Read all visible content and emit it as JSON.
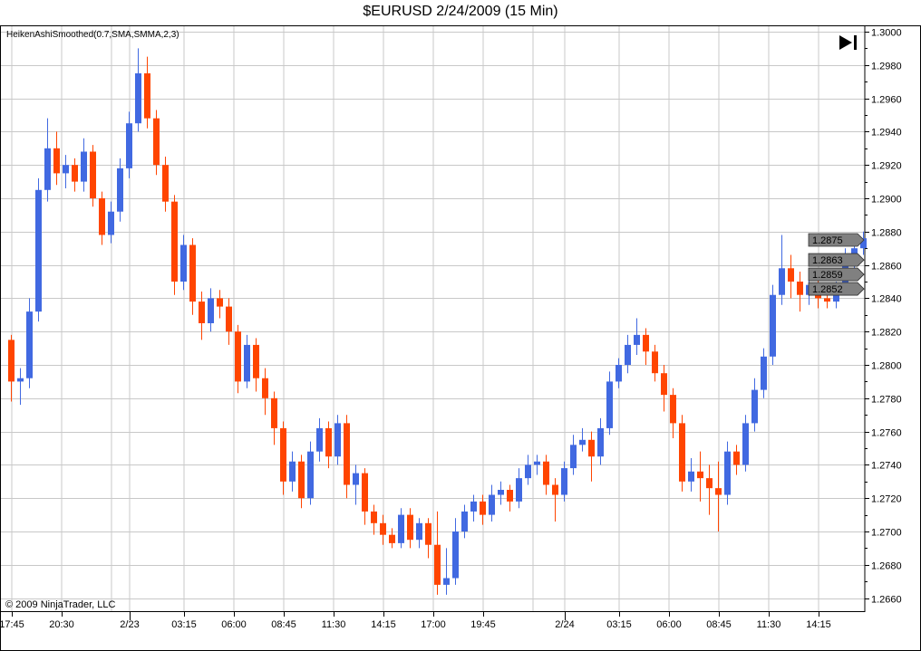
{
  "title": "$EURUSD  2/24/2009 (15 Min)",
  "indicator_label": "HeikenAshiSmoothed(0.7,SMA,SMMA,2,3)",
  "copyright": "© 2009 NinjaTrader, LLC",
  "icons": {
    "skip": "skip-to-end-icon"
  },
  "chart_data": {
    "type": "candlestick",
    "title": "$EURUSD  2/24/2009 (15 Min)",
    "colors": {
      "up": "#4169e1",
      "down": "#ff4500",
      "grid": "#c8c8c8",
      "price_marker": "#808080"
    },
    "ylim": [
      1.2652,
      1.3004
    ],
    "y_ticks": [
      "1.3000",
      "1.2980",
      "1.2960",
      "1.2940",
      "1.2920",
      "1.2900",
      "1.2880",
      "1.2860",
      "1.2840",
      "1.2820",
      "1.2800",
      "1.2780",
      "1.2760",
      "1.2740",
      "1.2720",
      "1.2700",
      "1.2680",
      "1.2660"
    ],
    "x_ticks": [
      "17:45",
      "20:30",
      "",
      "2/23",
      "03:15",
      "06:00",
      "08:45",
      "11:30",
      "14:15",
      "17:00",
      "19:45",
      "",
      "2/24",
      "03:15",
      "06:00",
      "08:45",
      "11:30",
      "14:15"
    ],
    "grid": true,
    "price_markers": [
      "1.2875",
      "1.2863",
      "1.2859",
      "1.2852"
    ],
    "bars_ohlc": [
      [
        1.2815,
        1.2818,
        1.2778,
        1.279
      ],
      [
        1.279,
        1.2798,
        1.2776,
        1.2792
      ],
      [
        1.2792,
        1.284,
        1.2786,
        1.2832
      ],
      [
        1.2832,
        1.2912,
        1.2826,
        1.2905
      ],
      [
        1.2905,
        1.2948,
        1.2898,
        1.293
      ],
      [
        1.293,
        1.294,
        1.2908,
        1.2915
      ],
      [
        1.2915,
        1.2926,
        1.2906,
        1.292
      ],
      [
        1.292,
        1.2924,
        1.2904,
        1.291
      ],
      [
        1.291,
        1.2936,
        1.2904,
        1.2928
      ],
      [
        1.2928,
        1.2932,
        1.2895,
        1.29
      ],
      [
        1.29,
        1.2904,
        1.2872,
        1.2878
      ],
      [
        1.2878,
        1.2898,
        1.2873,
        1.2892
      ],
      [
        1.2892,
        1.2924,
        1.2886,
        1.2918
      ],
      [
        1.2918,
        1.2952,
        1.2912,
        1.2945
      ],
      [
        1.2945,
        1.299,
        1.294,
        1.2975
      ],
      [
        1.2975,
        1.2985,
        1.2942,
        1.2948
      ],
      [
        1.2948,
        1.2953,
        1.2914,
        1.292
      ],
      [
        1.292,
        1.2925,
        1.2892,
        1.2898
      ],
      [
        1.2898,
        1.2902,
        1.2842,
        1.285
      ],
      [
        1.285,
        1.2878,
        1.2845,
        1.2872
      ],
      [
        1.2872,
        1.2876,
        1.283,
        1.2838
      ],
      [
        1.2838,
        1.2844,
        1.2815,
        1.2825
      ],
      [
        1.2825,
        1.2846,
        1.282,
        1.284
      ],
      [
        1.284,
        1.2845,
        1.2828,
        1.2835
      ],
      [
        1.2835,
        1.284,
        1.2812,
        1.282
      ],
      [
        1.282,
        1.2824,
        1.2783,
        1.279
      ],
      [
        1.279,
        1.2818,
        1.2786,
        1.2812
      ],
      [
        1.2812,
        1.2816,
        1.2784,
        1.2792
      ],
      [
        1.2792,
        1.2798,
        1.277,
        1.278
      ],
      [
        1.278,
        1.2784,
        1.2752,
        1.2762
      ],
      [
        1.2762,
        1.2766,
        1.2722,
        1.273
      ],
      [
        1.273,
        1.2748,
        1.2724,
        1.2742
      ],
      [
        1.2742,
        1.2746,
        1.2714,
        1.272
      ],
      [
        1.272,
        1.2754,
        1.2716,
        1.2748
      ],
      [
        1.2748,
        1.2768,
        1.2742,
        1.2762
      ],
      [
        1.2762,
        1.2766,
        1.2738,
        1.2745
      ],
      [
        1.2745,
        1.277,
        1.274,
        1.2765
      ],
      [
        1.2765,
        1.277,
        1.272,
        1.2728
      ],
      [
        1.2728,
        1.274,
        1.2716,
        1.2735
      ],
      [
        1.2735,
        1.2738,
        1.2704,
        1.2712
      ],
      [
        1.2712,
        1.2716,
        1.2698,
        1.2705
      ],
      [
        1.2705,
        1.271,
        1.2692,
        1.2698
      ],
      [
        1.2698,
        1.2702,
        1.269,
        1.2693
      ],
      [
        1.2693,
        1.2714,
        1.269,
        1.271
      ],
      [
        1.271,
        1.2714,
        1.269,
        1.2695
      ],
      [
        1.2695,
        1.2708,
        1.269,
        1.2705
      ],
      [
        1.2705,
        1.2708,
        1.2684,
        1.2692
      ],
      [
        1.2692,
        1.2712,
        1.2662,
        1.2668
      ],
      [
        1.2668,
        1.269,
        1.2662,
        1.2672
      ],
      [
        1.2672,
        1.2708,
        1.2668,
        1.27
      ],
      [
        1.27,
        1.2716,
        1.2696,
        1.2712
      ],
      [
        1.2712,
        1.2722,
        1.2706,
        1.2718
      ],
      [
        1.2718,
        1.2722,
        1.2704,
        1.271
      ],
      [
        1.271,
        1.2728,
        1.2706,
        1.2722
      ],
      [
        1.2722,
        1.273,
        1.2716,
        1.2725
      ],
      [
        1.2725,
        1.2728,
        1.2712,
        1.2718
      ],
      [
        1.2718,
        1.2738,
        1.2714,
        1.2732
      ],
      [
        1.2732,
        1.2746,
        1.2728,
        1.274
      ],
      [
        1.274,
        1.2746,
        1.2734,
        1.2742
      ],
      [
        1.2742,
        1.2746,
        1.2722,
        1.2728
      ],
      [
        1.2728,
        1.2732,
        1.2706,
        1.2722
      ],
      [
        1.2722,
        1.2742,
        1.2718,
        1.2738
      ],
      [
        1.2738,
        1.2758,
        1.2734,
        1.2752
      ],
      [
        1.2752,
        1.2762,
        1.2748,
        1.2755
      ],
      [
        1.2755,
        1.276,
        1.273,
        1.2745
      ],
      [
        1.2745,
        1.2768,
        1.274,
        1.2762
      ],
      [
        1.2762,
        1.2796,
        1.2758,
        1.279
      ],
      [
        1.279,
        1.2804,
        1.2786,
        1.28
      ],
      [
        1.28,
        1.2818,
        1.2795,
        1.2812
      ],
      [
        1.2812,
        1.2828,
        1.2806,
        1.2818
      ],
      [
        1.2818,
        1.2822,
        1.28,
        1.2808
      ],
      [
        1.2808,
        1.2812,
        1.279,
        1.2795
      ],
      [
        1.2795,
        1.28,
        1.2772,
        1.2782
      ],
      [
        1.2782,
        1.2786,
        1.2756,
        1.2765
      ],
      [
        1.2765,
        1.277,
        1.2724,
        1.273
      ],
      [
        1.273,
        1.2744,
        1.2724,
        1.2736
      ],
      [
        1.2736,
        1.2748,
        1.2718,
        1.2732
      ],
      [
        1.2732,
        1.274,
        1.271,
        1.2726
      ],
      [
        1.2726,
        1.2742,
        1.27,
        1.2722
      ],
      [
        1.2722,
        1.2754,
        1.2716,
        1.2748
      ],
      [
        1.2748,
        1.2752,
        1.2734,
        1.274
      ],
      [
        1.274,
        1.277,
        1.2736,
        1.2765
      ],
      [
        1.2765,
        1.2792,
        1.276,
        1.2785
      ],
      [
        1.2785,
        1.281,
        1.278,
        1.2805
      ],
      [
        1.2805,
        1.2848,
        1.28,
        1.2842
      ],
      [
        1.2842,
        1.2878,
        1.2836,
        1.2858
      ],
      [
        1.2858,
        1.2866,
        1.284,
        1.285
      ],
      [
        1.285,
        1.2856,
        1.2832,
        1.2842
      ],
      [
        1.2842,
        1.2854,
        1.2836,
        1.2848
      ],
      [
        1.2848,
        1.2856,
        1.2834,
        1.284
      ],
      [
        1.284,
        1.2844,
        1.2834,
        1.2838
      ],
      [
        1.2838,
        1.285,
        1.2834,
        1.2846
      ],
      [
        1.2846,
        1.287,
        1.2842,
        1.2864
      ],
      [
        1.2864,
        1.2874,
        1.2856,
        1.287
      ],
      [
        1.287,
        1.288,
        1.2866,
        1.2876
      ]
    ]
  }
}
